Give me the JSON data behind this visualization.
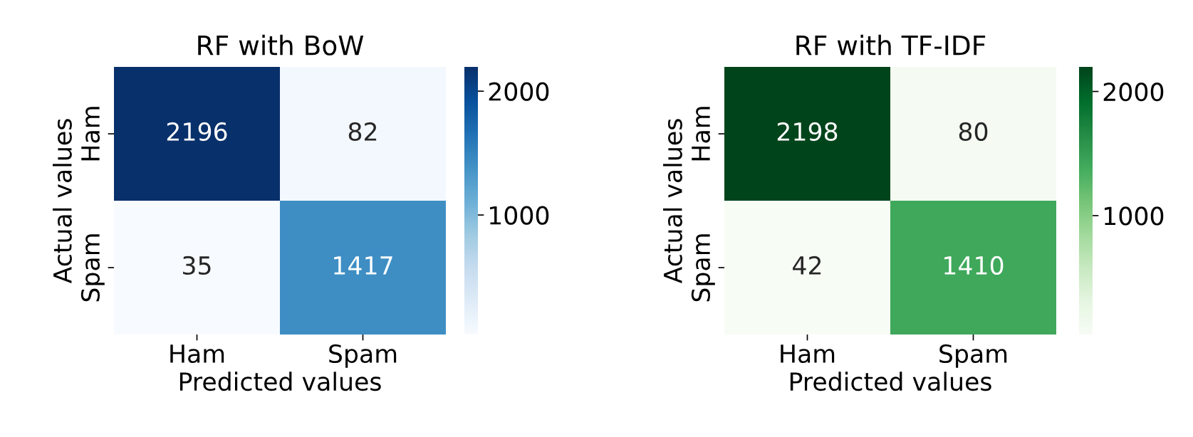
{
  "chart_data": [
    {
      "type": "heatmap",
      "title": "RF with BoW",
      "xlabel": "Predicted values",
      "ylabel": "Actual values",
      "categories": [
        "Ham",
        "Spam"
      ],
      "y_categories": [
        "Ham",
        "Spam"
      ],
      "cells": [
        [
          2196,
          82
        ],
        [
          35,
          1417
        ]
      ],
      "data_labels": true,
      "clim": [
        35,
        2196
      ],
      "cticks": [
        1000,
        2000
      ]
    },
    {
      "type": "heatmap",
      "title": "RF with TF-IDF",
      "xlabel": "Predicted values",
      "ylabel": "Actual values",
      "categories": [
        "Ham",
        "Spam"
      ],
      "y_categories": [
        "Ham",
        "Spam"
      ],
      "cells": [
        [
          2198,
          80
        ],
        [
          42,
          1410
        ]
      ],
      "data_labels": true,
      "clim": [
        42,
        2198
      ],
      "cticks": [
        1000,
        2000
      ]
    }
  ]
}
